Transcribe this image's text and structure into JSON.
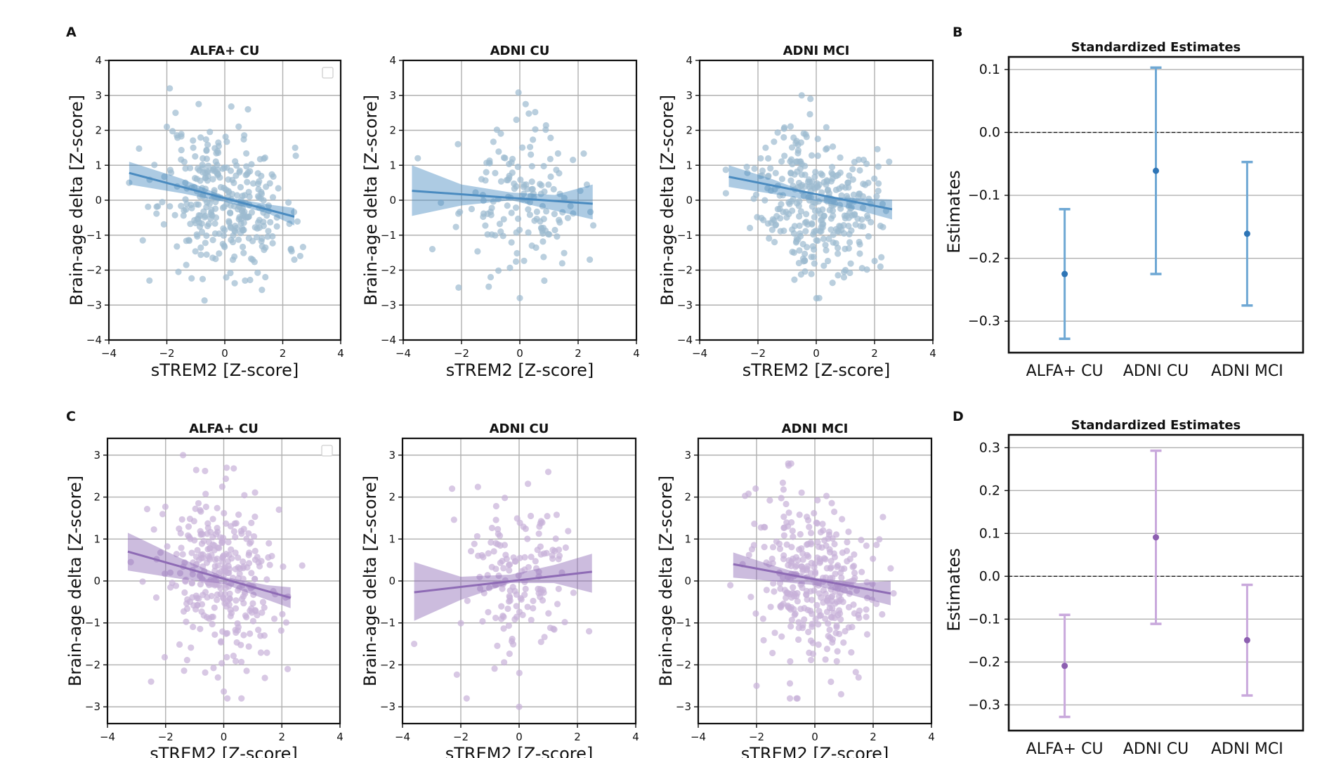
{
  "panel_labels": [
    "A",
    "B",
    "C",
    "D"
  ],
  "chart_data": [
    {
      "panel": "A",
      "type": "scatter",
      "title": "ALFA+ CU",
      "xlabel": "sTREM2 [Z-score]",
      "ylabel": "Brain-age delta [Z-score]",
      "xlim": [
        -4,
        4
      ],
      "ylim": [
        -4,
        4
      ],
      "xticks": [
        -4,
        -2,
        0,
        2,
        4
      ],
      "yticks": [
        -4,
        -3,
        -2,
        -1,
        0,
        1,
        2,
        3,
        4
      ],
      "grid": true,
      "legend": "top-right (empty box)",
      "color": "#4a8bc0",
      "point_color": "#9dbad0",
      "n_points": 320,
      "seed": 11,
      "point_slope": -0.2,
      "point_sd_x": 1.05,
      "point_sd_y": 1.0,
      "regression": {
        "x": [
          -3.3,
          2.4
        ],
        "y": [
          0.78,
          -0.47
        ]
      },
      "ci_band": {
        "x": [
          -3.3,
          -1.5,
          0,
          1.5,
          2.4
        ],
        "lower": [
          0.45,
          0.2,
          -0.05,
          -0.38,
          -0.72
        ],
        "upper": [
          1.1,
          0.62,
          0.1,
          -0.12,
          -0.22
        ]
      },
      "outliers": [
        [
          -1.9,
          3.2
        ],
        [
          -2.0,
          2.1
        ],
        [
          -1.7,
          2.5
        ],
        [
          -2.6,
          -2.3
        ],
        [
          0.7,
          -2.3
        ],
        [
          2.4,
          -1.7
        ],
        [
          0.8,
          2.6
        ],
        [
          -1.6,
          -2.05
        ],
        [
          1.4,
          -2.2
        ],
        [
          -3.3,
          0.5
        ]
      ]
    },
    {
      "panel": "A",
      "type": "scatter",
      "title": "ADNI CU",
      "xlabel": "sTREM2 [Z-score]",
      "ylabel": "Brain-age delta [Z-score]",
      "xlim": [
        -4,
        4
      ],
      "ylim": [
        -4,
        4
      ],
      "xticks": [
        -4,
        -2,
        0,
        2,
        4
      ],
      "yticks": [
        -4,
        -3,
        -2,
        -1,
        0,
        1,
        2,
        3,
        4
      ],
      "grid": true,
      "color": "#4a8bc0",
      "point_color": "#9dbad0",
      "n_points": 150,
      "seed": 23,
      "point_slope": -0.07,
      "point_sd_x": 1.0,
      "point_sd_y": 1.0,
      "regression": {
        "x": [
          -3.7,
          2.5
        ],
        "y": [
          0.27,
          -0.1
        ]
      },
      "ci_band": {
        "x": [
          -3.7,
          -2,
          -0.3,
          1.2,
          2.5
        ],
        "lower": [
          -0.45,
          -0.15,
          0.0,
          -0.3,
          -0.55
        ],
        "upper": [
          1.0,
          0.45,
          0.22,
          0.15,
          0.45
        ]
      },
      "outliers": [
        [
          0.2,
          2.75
        ],
        [
          -3.5,
          1.2
        ],
        [
          -2.1,
          -2.5
        ],
        [
          0.0,
          -2.8
        ],
        [
          -1.0,
          -2.2
        ],
        [
          2.4,
          -1.7
        ],
        [
          -3.0,
          -1.4
        ]
      ]
    },
    {
      "panel": "A",
      "type": "scatter",
      "title": "ADNI MCI",
      "xlabel": "sTREM2 [Z-score]",
      "ylabel": "Brain-age delta [Z-score]",
      "xlim": [
        -4,
        4
      ],
      "ylim": [
        -4,
        4
      ],
      "xticks": [
        -4,
        -2,
        0,
        2,
        4
      ],
      "yticks": [
        -4,
        -3,
        -2,
        -1,
        0,
        1,
        2,
        3,
        4
      ],
      "grid": true,
      "color": "#4a8bc0",
      "point_color": "#9dbad0",
      "n_points": 330,
      "seed": 37,
      "point_slope": -0.15,
      "point_sd_x": 1.0,
      "point_sd_y": 1.0,
      "regression": {
        "x": [
          -3.0,
          2.6
        ],
        "y": [
          0.67,
          -0.26
        ]
      },
      "ci_band": {
        "x": [
          -3.0,
          -1.5,
          0,
          1.5,
          2.6
        ],
        "lower": [
          0.38,
          0.18,
          -0.02,
          -0.3,
          -0.55
        ],
        "upper": [
          1.0,
          0.6,
          0.12,
          0.05,
          0.02
        ]
      },
      "outliers": [
        [
          -0.5,
          3.0
        ],
        [
          -0.2,
          2.9
        ],
        [
          0.1,
          -2.8
        ],
        [
          1.0,
          -2.0
        ],
        [
          2.2,
          -1.9
        ],
        [
          -3.1,
          0.2
        ],
        [
          2.5,
          1.1
        ]
      ]
    },
    {
      "panel": "B",
      "type": "errorbar",
      "title": "Standardized Estimates",
      "ylabel": "Estimates",
      "categories": [
        "ALFA+ CU",
        "ADNI CU",
        "ADNI MCI"
      ],
      "estimates": [
        -0.225,
        -0.061,
        -0.161
      ],
      "lower": [
        -0.328,
        -0.225,
        -0.275
      ],
      "upper": [
        -0.122,
        0.103,
        -0.047
      ],
      "ylim": [
        -0.35,
        0.12
      ],
      "yticks": [
        0.1,
        0.0,
        -0.1,
        -0.2,
        -0.3
      ],
      "ytick_labels": [
        "0.1",
        "0.0",
        "−0.1",
        "−0.2",
        "−0.3"
      ],
      "zero_line": "dashed",
      "color": "#6fa8d4",
      "point_color": "#2e75b6"
    },
    {
      "panel": "C",
      "type": "scatter",
      "title": "ALFA+ CU",
      "xlabel": "sTREM2 [Z-score]",
      "ylabel": "Brain-age delta [Z-score]",
      "xlim": [
        -4,
        4
      ],
      "ylim": [
        -3.4,
        3.4
      ],
      "xticks": [
        -4,
        -2,
        0,
        2,
        4
      ],
      "yticks": [
        -3,
        -2,
        -1,
        0,
        1,
        2,
        3
      ],
      "grid": true,
      "legend": "top-right (empty box)",
      "color": "#8e6bb5",
      "point_color": "#c8b1d8",
      "n_points": 320,
      "seed": 53,
      "point_slope": -0.18,
      "point_sd_x": 1.05,
      "point_sd_y": 1.0,
      "regression": {
        "x": [
          -3.3,
          2.3
        ],
        "y": [
          0.7,
          -0.4
        ]
      },
      "ci_band": {
        "x": [
          -3.3,
          -1.5,
          0,
          1.5,
          2.3
        ],
        "lower": [
          0.25,
          0.05,
          -0.07,
          -0.45,
          -0.65
        ],
        "upper": [
          1.15,
          0.55,
          0.1,
          -0.1,
          -0.15
        ]
      },
      "outliers": [
        [
          -1.4,
          3.0
        ],
        [
          0.1,
          2.7
        ],
        [
          -2.5,
          -2.4
        ],
        [
          2.2,
          -2.1
        ],
        [
          -0.2,
          -2.3
        ],
        [
          -3.2,
          0.45
        ],
        [
          1.9,
          1.7
        ]
      ]
    },
    {
      "panel": "C",
      "type": "scatter",
      "title": "ADNI CU",
      "xlabel": "sTREM2 [Z-score]",
      "ylabel": "Brain-age delta [Z-score]",
      "xlim": [
        -4,
        4
      ],
      "ylim": [
        -3.4,
        3.4
      ],
      "xticks": [
        -4,
        -2,
        0,
        2,
        4
      ],
      "yticks": [
        -3,
        -2,
        -1,
        0,
        1,
        2,
        3
      ],
      "grid": true,
      "color": "#8e6bb5",
      "point_color": "#c8b1d8",
      "n_points": 150,
      "seed": 71,
      "point_slope": 0.08,
      "point_sd_x": 1.0,
      "point_sd_y": 1.0,
      "regression": {
        "x": [
          -3.6,
          2.5
        ],
        "y": [
          -0.27,
          0.22
        ]
      },
      "ci_band": {
        "x": [
          -3.6,
          -2,
          -0.3,
          1.2,
          2.5
        ],
        "lower": [
          -0.95,
          -0.45,
          -0.05,
          -0.05,
          -0.28
        ],
        "upper": [
          0.45,
          0.1,
          0.15,
          0.38,
          0.65
        ]
      },
      "outliers": [
        [
          1.0,
          2.6
        ],
        [
          0.0,
          -3.0
        ],
        [
          -1.8,
          -2.8
        ],
        [
          -3.6,
          -1.5
        ],
        [
          2.4,
          -1.2
        ],
        [
          -2.3,
          2.2
        ]
      ]
    },
    {
      "panel": "C",
      "type": "scatter",
      "title": "ADNI MCI",
      "xlabel": "sTREM2 [Z-score]",
      "ylabel": "Brain-age delta [Z-score]",
      "xlim": [
        -4,
        4
      ],
      "ylim": [
        -3.4,
        3.4
      ],
      "xticks": [
        -4,
        -2,
        0,
        2,
        4
      ],
      "yticks": [
        -3,
        -2,
        -1,
        0,
        1,
        2,
        3
      ],
      "grid": true,
      "color": "#8e6bb5",
      "point_color": "#c8b1d8",
      "n_points": 330,
      "seed": 89,
      "point_slope": -0.15,
      "point_sd_x": 1.0,
      "point_sd_y": 1.0,
      "regression": {
        "x": [
          -2.8,
          2.6
        ],
        "y": [
          0.4,
          -0.3
        ]
      },
      "ci_band": {
        "x": [
          -2.8,
          -1.5,
          0,
          1.5,
          2.6
        ],
        "lower": [
          0.08,
          0.0,
          -0.1,
          -0.38,
          -0.58
        ],
        "upper": [
          0.68,
          0.38,
          0.08,
          -0.05,
          0.0
        ]
      },
      "outliers": [
        [
          -0.9,
          2.75
        ],
        [
          -2.0,
          -2.5
        ],
        [
          0.9,
          -2.7
        ],
        [
          2.6,
          0.3
        ],
        [
          -2.9,
          -0.1
        ],
        [
          1.5,
          -2.3
        ]
      ]
    },
    {
      "panel": "D",
      "type": "errorbar",
      "title": "Standardized Estimates",
      "ylabel": "Estimates",
      "categories": [
        "ALFA+ CU",
        "ADNI CU",
        "ADNI MCI"
      ],
      "estimates": [
        -0.209,
        0.091,
        -0.149
      ],
      "lower": [
        -0.328,
        -0.111,
        -0.278
      ],
      "upper": [
        -0.09,
        0.293,
        -0.02
      ],
      "ylim": [
        -0.36,
        0.33
      ],
      "yticks": [
        0.3,
        0.2,
        0.1,
        0.0,
        -0.1,
        -0.2,
        -0.3
      ],
      "ytick_labels": [
        "0.3",
        "0.2",
        "0.1",
        "0.0",
        "−0.1",
        "−0.2",
        "−0.3"
      ],
      "zero_line": "dashed",
      "color": "#c9a9dc",
      "point_color": "#8c5fb0"
    }
  ]
}
